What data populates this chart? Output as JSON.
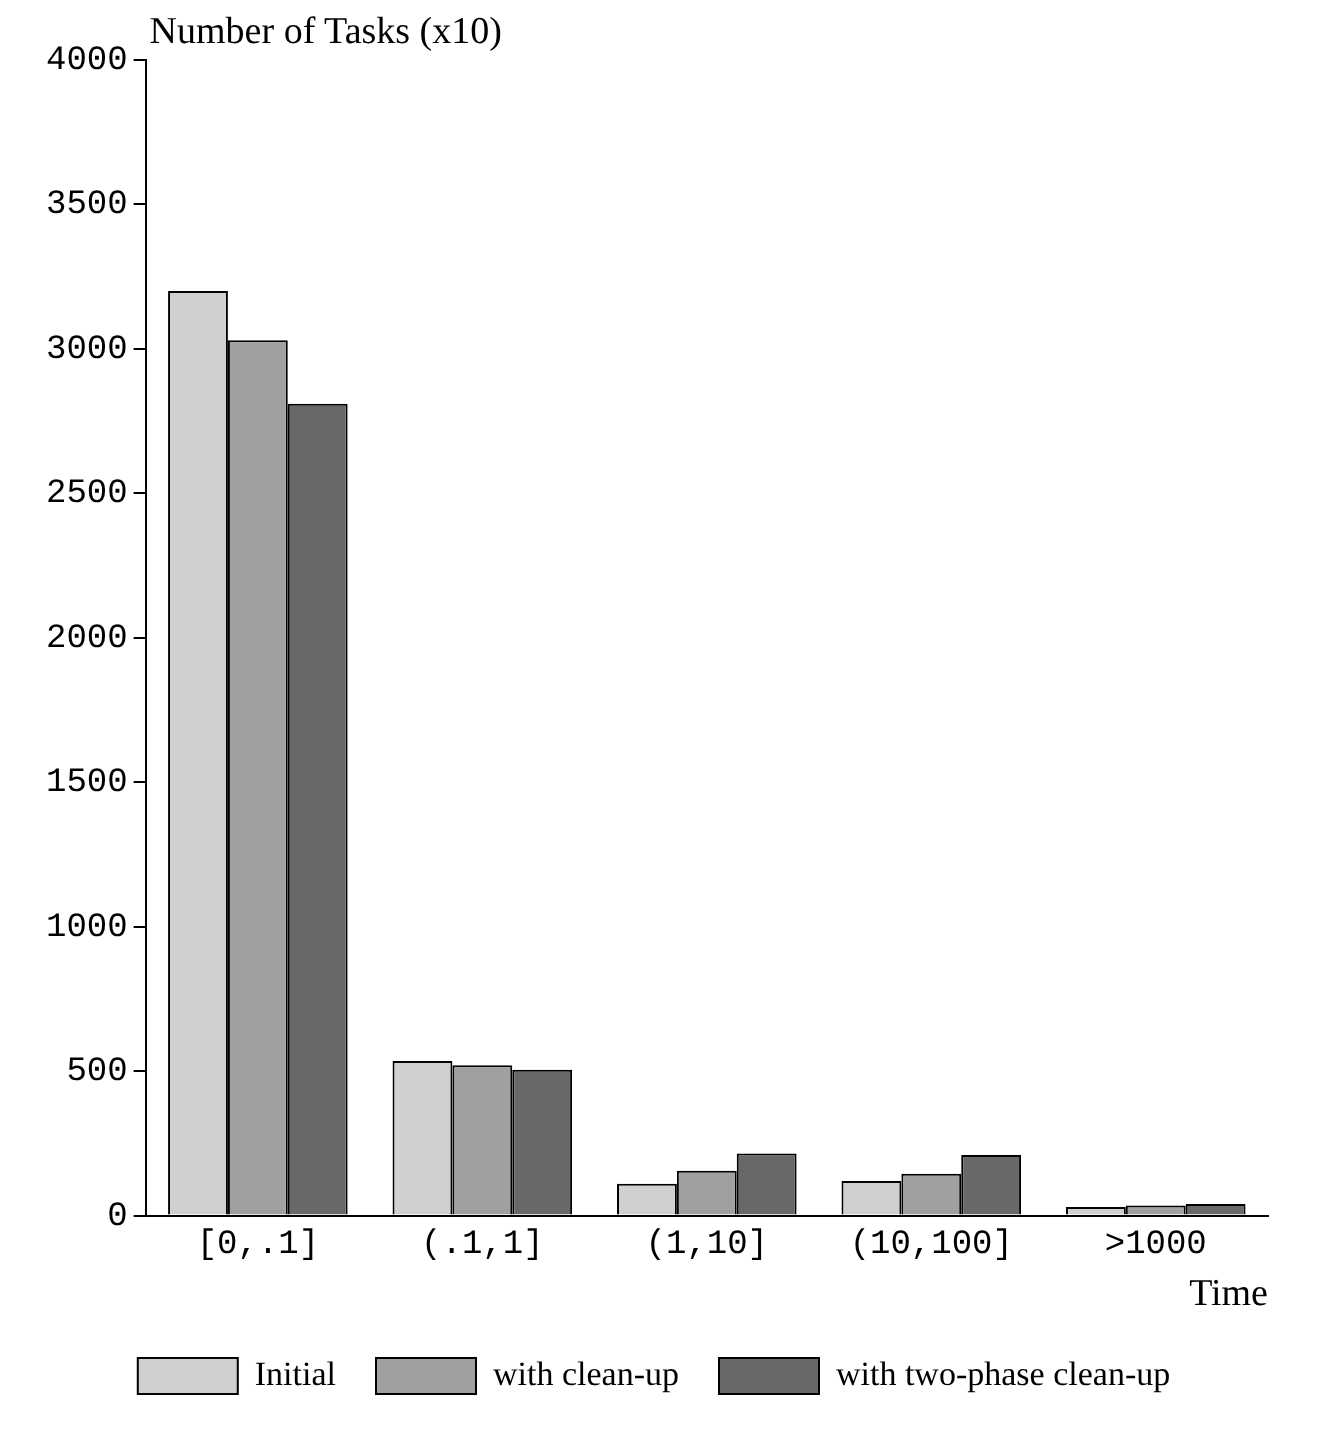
{
  "chart_data": {
    "type": "bar",
    "ylabel": "Number of Tasks (x10)",
    "xlabel": "Time",
    "categories": [
      "[0,.1]",
      "(.1,1]",
      "(1,10]",
      "(10,100]",
      ">1000"
    ],
    "series": [
      {
        "name": "Initial",
        "color": "#d0d0d0",
        "values": [
          3200,
          535,
          110,
          120,
          30
        ]
      },
      {
        "name": "with clean-up",
        "color": "#a0a0a0",
        "values": [
          3030,
          520,
          155,
          145,
          35
        ]
      },
      {
        "name": "with two-phase clean-up",
        "color": "#686868",
        "values": [
          2810,
          505,
          215,
          210,
          40
        ]
      }
    ],
    "ylim": [
      0,
      4000
    ],
    "yticks": [
      0,
      500,
      1000,
      1500,
      2000,
      2500,
      3000,
      3500,
      4000
    ],
    "grid": false,
    "legend": "bottom"
  }
}
